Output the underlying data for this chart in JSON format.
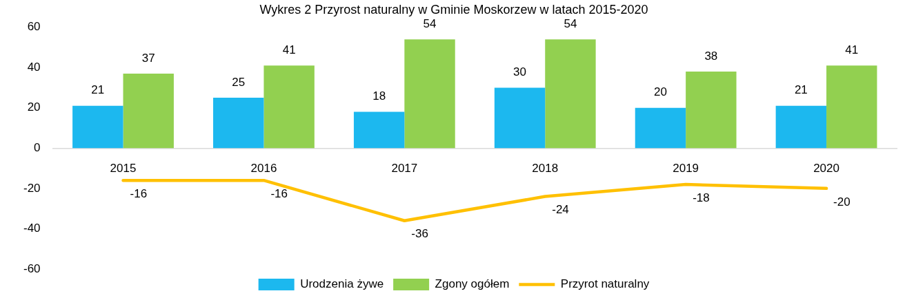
{
  "chart_data": {
    "type": "bar",
    "title": "Wykres 2 Przyrost naturalny w Gminie Moskorzew w latach 2015-2020",
    "categories": [
      "2015",
      "2016",
      "2017",
      "2018",
      "2019",
      "2020"
    ],
    "series": [
      {
        "name": "Urodzenia żywe",
        "color": "#1cb8ef",
        "values": [
          21,
          25,
          18,
          30,
          20,
          21
        ]
      },
      {
        "name": "Zgony ogółem",
        "color": "#92d050",
        "values": [
          37,
          41,
          54,
          54,
          38,
          41
        ]
      },
      {
        "name": "Przyrot naturalny",
        "type": "line",
        "color": "#ffc000",
        "values": [
          -16,
          -16,
          -36,
          -24,
          -18,
          -20
        ]
      }
    ],
    "ylim": [
      -60,
      60
    ],
    "yticks": [
      -60,
      -40,
      -20,
      0,
      20,
      40,
      60
    ],
    "legend": "bottom",
    "data_labels": true
  }
}
